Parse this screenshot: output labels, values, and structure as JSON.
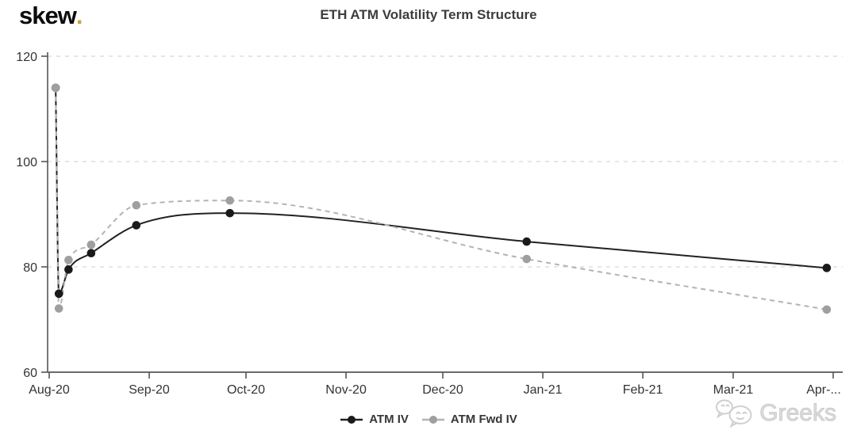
{
  "brand": {
    "logo_text": "skew",
    "logo_dot": ".",
    "logo_dot_color": "#cda33c"
  },
  "header": {
    "title": "ETH ATM Volatility Term Structure"
  },
  "watermark": {
    "label": "Greeks",
    "icon": "wechat-bubbles-icon"
  },
  "legend": {
    "items": [
      {
        "label": "ATM IV"
      },
      {
        "label": "ATM Fwd IV"
      }
    ]
  },
  "chart_data": {
    "type": "line",
    "title": "ETH ATM Volatility Term Structure",
    "xlabel": "",
    "ylabel": "",
    "x_axis": {
      "tick_labels": [
        "Aug-20",
        "Sep-20",
        "Oct-20",
        "Nov-20",
        "Dec-20",
        "Jan-21",
        "Feb-21",
        "Mar-21",
        "Apr-..."
      ],
      "tick_days_from_aug1_2020": [
        0,
        31,
        61,
        92,
        122,
        153,
        184,
        212,
        243
      ],
      "range_days": [
        0,
        246
      ]
    },
    "y_axis": {
      "tick_labels": [
        "60",
        "80",
        "100",
        "120"
      ],
      "tick_values": [
        60,
        80,
        100,
        120
      ],
      "ylim": [
        60,
        120
      ],
      "gridlines": "dashed"
    },
    "series": [
      {
        "name": "ATM IV",
        "style": "solid",
        "marker": "circle",
        "line_color": "#222222",
        "dot_color": "#1a1a1a",
        "x_days": [
          2,
          3,
          6,
          13,
          27,
          56,
          148,
          241
        ],
        "values": [
          114,
          74.9,
          79.5,
          82.6,
          87.9,
          90.2,
          84.8,
          79.8
        ]
      },
      {
        "name": "ATM Fwd IV",
        "style": "dashed",
        "marker": "circle",
        "line_color": "#b3b3b3",
        "dot_color": "#9f9f9f",
        "x_days": [
          2,
          3,
          6,
          13,
          27,
          56,
          148,
          241
        ],
        "values": [
          114,
          72.1,
          81.3,
          84.2,
          91.7,
          92.6,
          81.5,
          71.9
        ]
      }
    ],
    "legend_position": "bottom-center",
    "grid_color": "#dedede",
    "axis_color": "#555555"
  }
}
